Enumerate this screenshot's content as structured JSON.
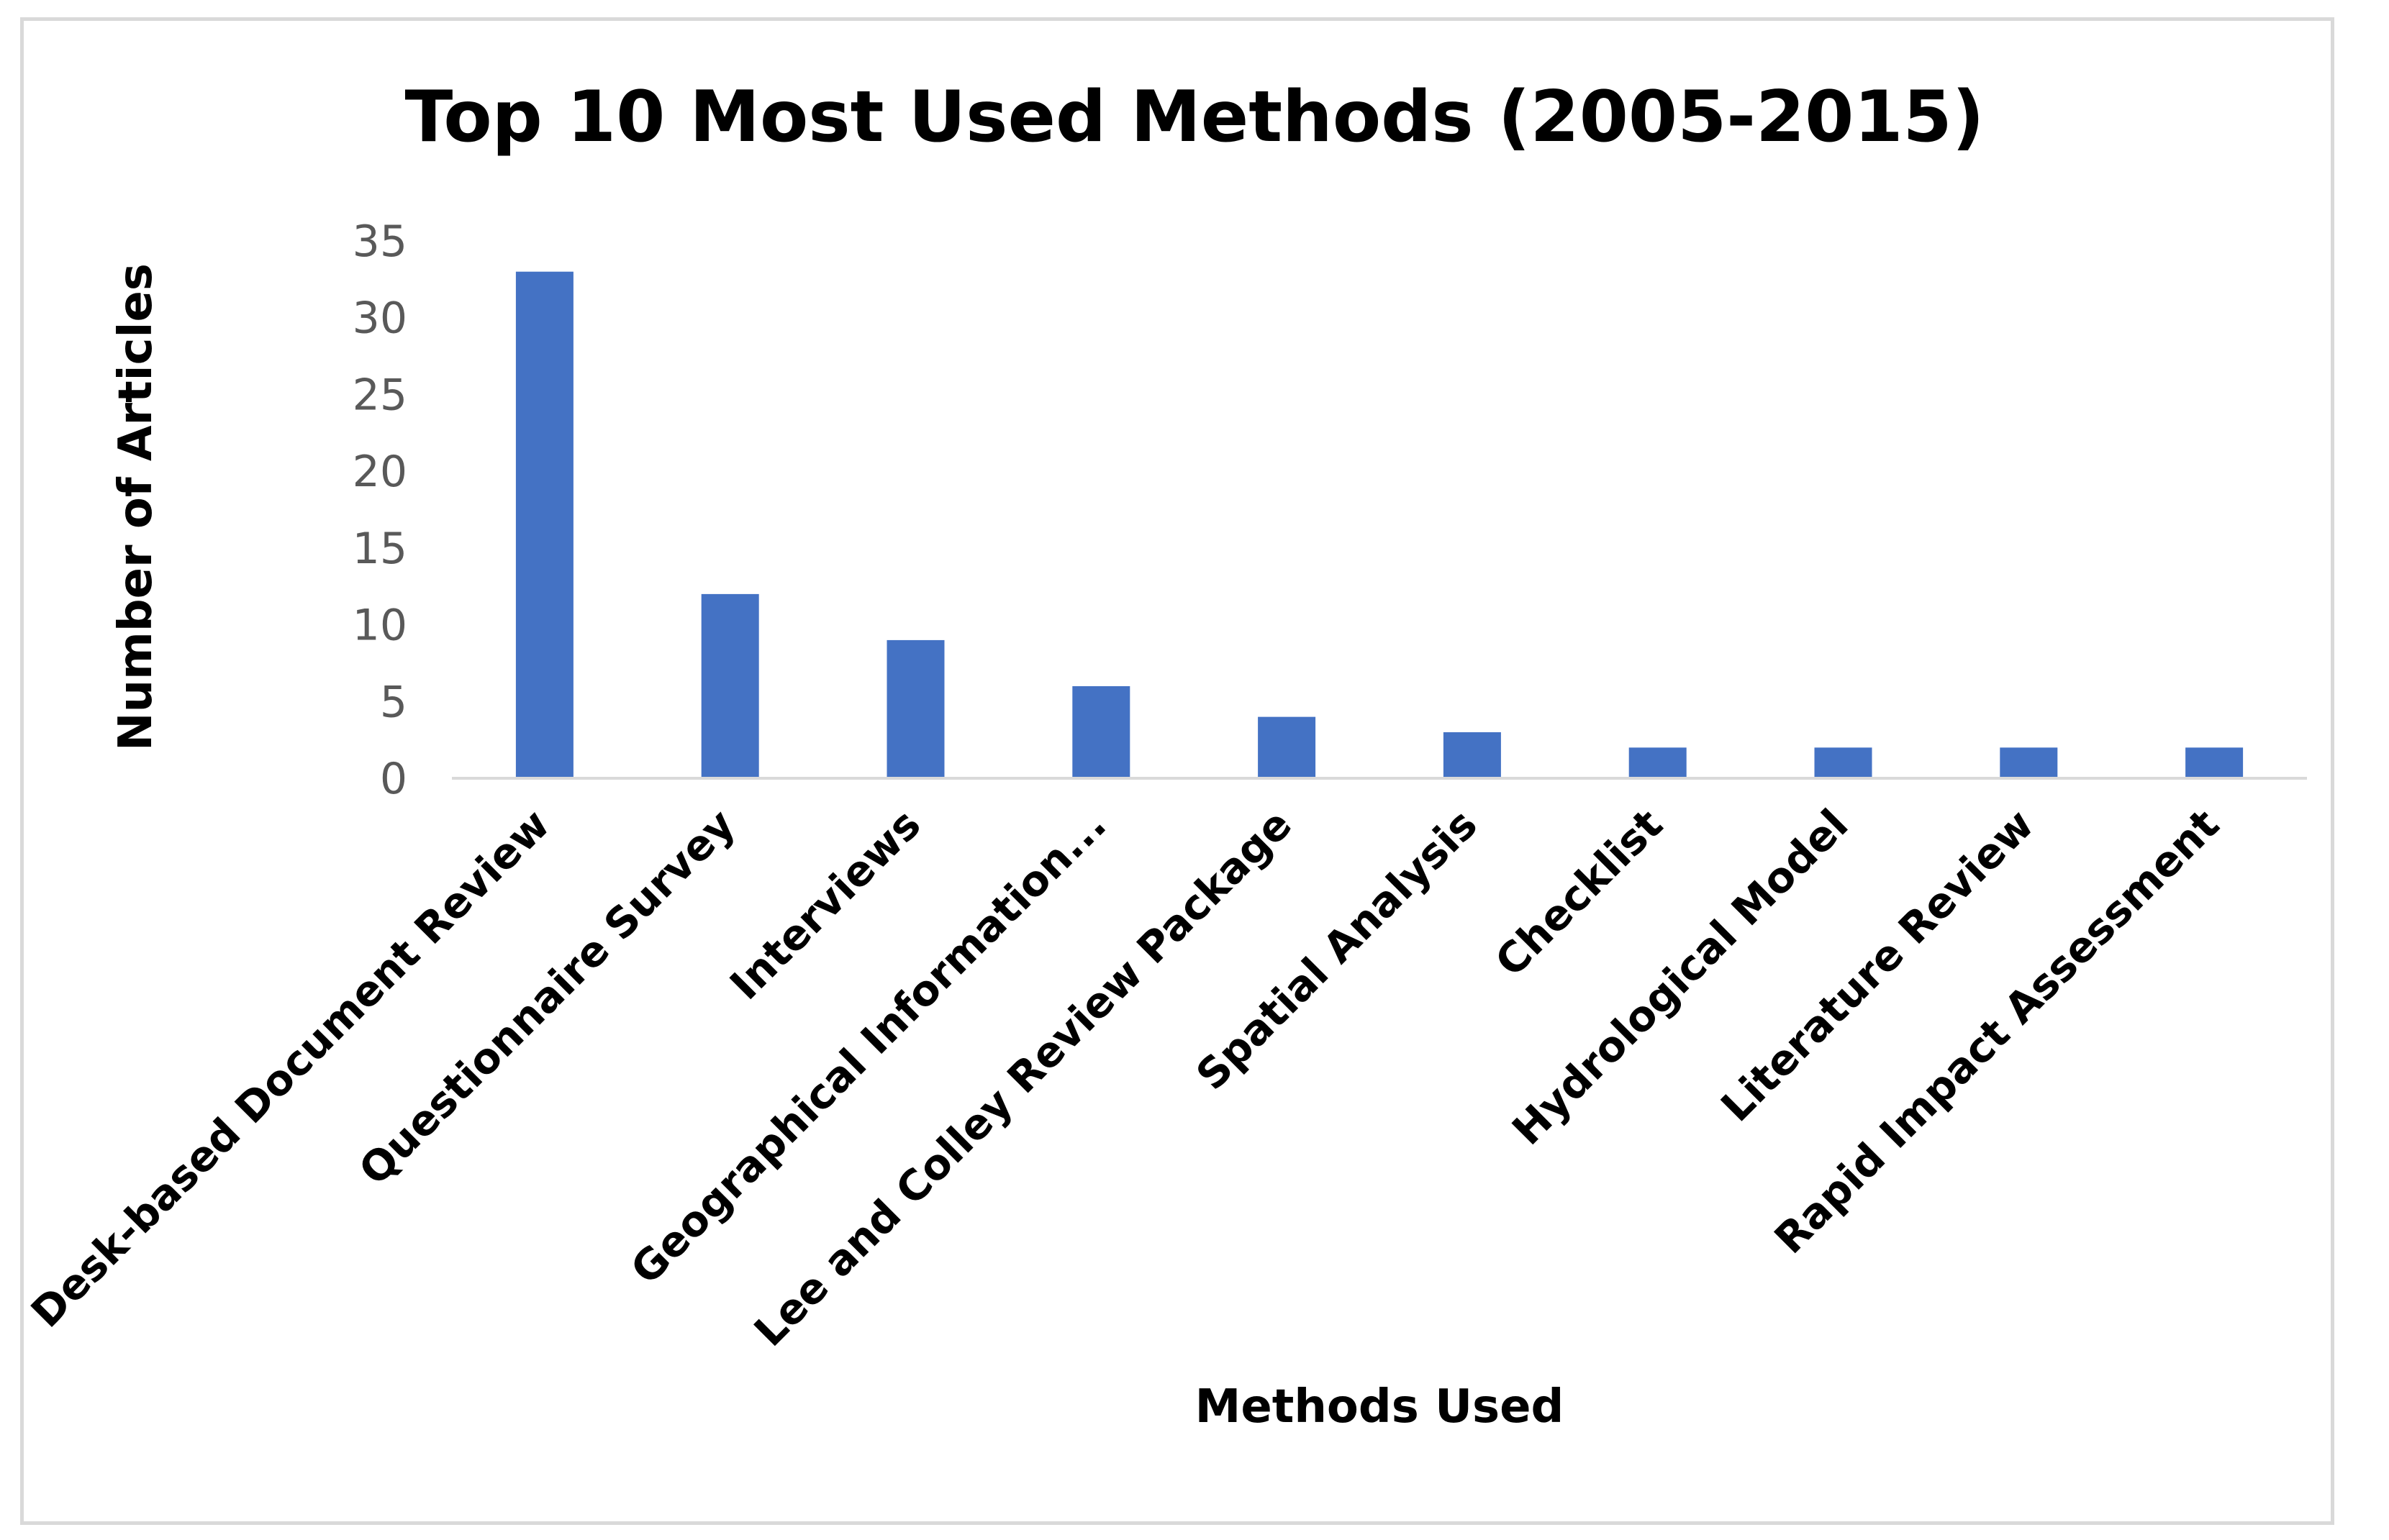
{
  "chart_data": {
    "type": "bar",
    "title": "Top 10 Most Used Methods (2005-2015)",
    "xlabel": "Methods Used",
    "ylabel": "Number of Articles",
    "categories": [
      "Desk-based Document Review",
      "Questionnaire Survey",
      "Interviews",
      "Geographical Information...",
      "Lee and Colley Review Package",
      "Spatial Analysis",
      "Checklist",
      "Hydrological Model",
      "Literature Review",
      "Rapid Impact Assessment"
    ],
    "values": [
      33,
      12,
      9,
      6,
      4,
      3,
      2,
      2,
      2,
      2
    ],
    "yticks": [
      "0",
      "5",
      "10",
      "15",
      "20",
      "25",
      "30",
      "35"
    ],
    "ylim": [
      0,
      35
    ],
    "grid": false,
    "legend": "none",
    "bar_color": "#4472C4",
    "axis_color": "#d9d9d9"
  }
}
